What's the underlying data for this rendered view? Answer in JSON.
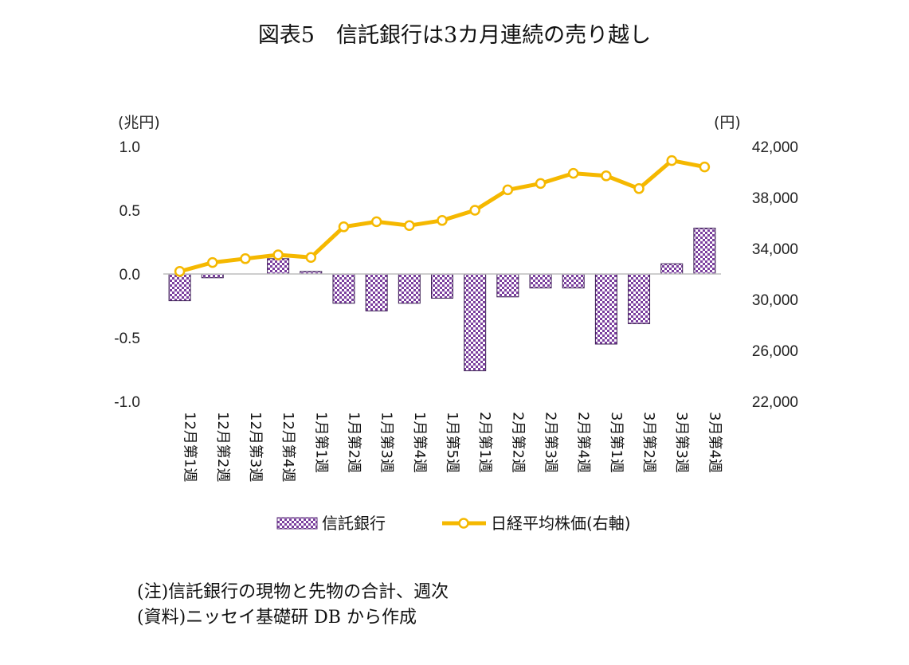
{
  "title": "図表5　信託銀行は3カ月連続の売り越し",
  "chart_data": {
    "type": "bar+line",
    "categories": [
      "12月第1週",
      "12月第2週",
      "12月第3週",
      "12月第4週",
      "1月第1週",
      "1月第2週",
      "1月第3週",
      "1月第4週",
      "1月第5週",
      "2月第1週",
      "2月第2週",
      "2月第3週",
      "2月第4週",
      "3月第1週",
      "3月第2週",
      "3月第3週",
      "3月第4週"
    ],
    "series": [
      {
        "name": "信託銀行",
        "axis": "left",
        "type": "bar",
        "color": "#7B3F9E",
        "values": [
          -0.21,
          -0.03,
          0.0,
          0.12,
          0.02,
          -0.23,
          -0.29,
          -0.23,
          -0.19,
          -0.76,
          -0.18,
          -0.11,
          -0.11,
          -0.55,
          -0.39,
          0.08,
          0.36
        ]
      },
      {
        "name": "日経平均株価(右軸)",
        "axis": "right",
        "type": "line",
        "color": "#F5B800",
        "values": [
          32200,
          32900,
          33200,
          33500,
          33300,
          35700,
          36100,
          35800,
          36200,
          37000,
          38600,
          39100,
          39900,
          39700,
          38700,
          40900,
          40400
        ]
      }
    ],
    "left_axis": {
      "unit": "(兆円)",
      "ylim": [
        -1.0,
        1.0
      ],
      "ticks": [
        1.0,
        0.5,
        0.0,
        -0.5,
        -1.0
      ],
      "tick_labels": [
        "1.0",
        "0.5",
        "0.0",
        "-0.5",
        "-1.0"
      ]
    },
    "right_axis": {
      "unit": "(円)",
      "ylim": [
        22000,
        42000
      ],
      "ticks": [
        42000,
        38000,
        34000,
        30000,
        26000,
        22000
      ],
      "tick_labels": [
        "42,000",
        "38,000",
        "34,000",
        "30,000",
        "26,000",
        "22,000"
      ]
    },
    "legend": [
      {
        "label": "信託銀行",
        "kind": "bar"
      },
      {
        "label": "日経平均株価(右軸)",
        "kind": "line"
      }
    ],
    "legend_position": "bottom",
    "grid": false
  },
  "notes": [
    "(注)信託銀行の現物と先物の合計、週次",
    "(資料)ニッセイ基礎研 DB から作成"
  ]
}
